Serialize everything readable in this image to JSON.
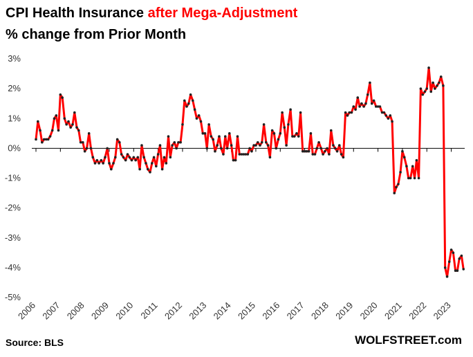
{
  "chart_data": {
    "type": "line",
    "title": "CPI Health Insurance",
    "title_highlight": "after Mega-Adjustment",
    "subtitle": "% change from Prior Month",
    "source": "Source: BLS",
    "brand": "WOLFSTREET.com",
    "x": [
      2006,
      2006.08,
      2006.17,
      2006.25,
      2006.33,
      2006.42,
      2006.5,
      2006.58,
      2006.67,
      2006.75,
      2006.83,
      2006.92,
      2007,
      2007.08,
      2007.17,
      2007.25,
      2007.33,
      2007.42,
      2007.5,
      2007.58,
      2007.67,
      2007.75,
      2007.83,
      2007.92,
      2008,
      2008.08,
      2008.17,
      2008.25,
      2008.33,
      2008.42,
      2008.5,
      2008.58,
      2008.67,
      2008.75,
      2008.83,
      2008.92,
      2009,
      2009.08,
      2009.17,
      2009.25,
      2009.33,
      2009.42,
      2009.5,
      2009.58,
      2009.67,
      2009.75,
      2009.83,
      2009.92,
      2010,
      2010.08,
      2010.17,
      2010.25,
      2010.33,
      2010.42,
      2010.5,
      2010.58,
      2010.67,
      2010.75,
      2010.83,
      2010.92,
      2011,
      2011.08,
      2011.17,
      2011.25,
      2011.33,
      2011.42,
      2011.5,
      2011.58,
      2011.67,
      2011.75,
      2011.83,
      2011.92,
      2012,
      2012.08,
      2012.17,
      2012.25,
      2012.33,
      2012.42,
      2012.5,
      2012.58,
      2012.67,
      2012.75,
      2012.83,
      2012.92,
      2013,
      2013.08,
      2013.17,
      2013.25,
      2013.33,
      2013.42,
      2013.5,
      2013.58,
      2013.67,
      2013.75,
      2013.83,
      2013.92,
      2014,
      2014.08,
      2014.17,
      2014.25,
      2014.33,
      2014.42,
      2014.5,
      2014.58,
      2014.67,
      2014.75,
      2014.83,
      2014.92,
      2015,
      2015.08,
      2015.17,
      2015.25,
      2015.33,
      2015.42,
      2015.5,
      2015.58,
      2015.67,
      2015.75,
      2015.83,
      2015.92,
      2016,
      2016.08,
      2016.17,
      2016.25,
      2016.33,
      2016.42,
      2016.5,
      2016.58,
      2016.67,
      2016.75,
      2016.83,
      2016.92,
      2017,
      2017.08,
      2017.17,
      2017.25,
      2017.33,
      2017.42,
      2017.5,
      2017.58,
      2017.67,
      2017.75,
      2017.83,
      2017.92,
      2018,
      2018.08,
      2018.17,
      2018.25,
      2018.33,
      2018.42,
      2018.5,
      2018.58,
      2018.67,
      2018.75,
      2018.83,
      2018.92,
      2019,
      2019.08,
      2019.17,
      2019.25,
      2019.33,
      2019.42,
      2019.5,
      2019.58,
      2019.67,
      2019.75,
      2019.83,
      2019.92,
      2020,
      2020.08,
      2020.17,
      2020.25,
      2020.33,
      2020.42,
      2020.5,
      2020.58,
      2020.67,
      2020.75,
      2020.83,
      2020.92,
      2021,
      2021.08,
      2021.17,
      2021.25,
      2021.33,
      2021.42,
      2021.5,
      2021.58,
      2021.67,
      2021.75,
      2021.83,
      2021.92,
      2022,
      2022.08,
      2022.17,
      2022.25,
      2022.33,
      2022.42,
      2022.5,
      2022.58,
      2022.67,
      2022.75,
      2022.83,
      2022.92,
      2023,
      2023.08,
      2023.17,
      2023.25,
      2023.33,
      2023.42,
      2023.5
    ],
    "series": [
      {
        "name": "CPI Health Insurance",
        "color": "#ff0000",
        "marker_color": "#222222",
        "values": [
          0.3,
          0.9,
          0.6,
          0.2,
          0.3,
          0.3,
          0.3,
          0.4,
          0.6,
          1.0,
          1.1,
          0.6,
          1.8,
          1.7,
          1.0,
          0.8,
          0.9,
          0.7,
          0.8,
          1.2,
          0.7,
          0.6,
          0.2,
          0.2,
          -0.1,
          0.0,
          0.5,
          0.0,
          -0.3,
          -0.5,
          -0.4,
          -0.5,
          -0.4,
          -0.5,
          -0.3,
          0.0,
          -0.5,
          -0.7,
          -0.5,
          -0.3,
          0.3,
          0.2,
          -0.2,
          -0.3,
          -0.4,
          -0.2,
          -0.3,
          -0.4,
          -0.3,
          -0.4,
          -0.3,
          -0.7,
          0.1,
          -0.3,
          -0.5,
          -0.7,
          -0.8,
          -0.5,
          -0.3,
          -0.6,
          -0.2,
          0.1,
          -0.7,
          -0.3,
          -0.5,
          0.4,
          -0.3,
          0.1,
          0.2,
          0.0,
          0.2,
          0.2,
          0.8,
          1.6,
          1.4,
          1.5,
          1.8,
          1.6,
          1.3,
          1.0,
          1.1,
          0.9,
          0.5,
          0.5,
          0.0,
          0.8,
          0.4,
          0.3,
          -0.1,
          0.1,
          0.4,
          0.0,
          -0.2,
          0.4,
          0.0,
          0.5,
          0.1,
          -0.4,
          -0.4,
          0.4,
          -0.2,
          -0.2,
          -0.2,
          -0.2,
          -0.2,
          0.0,
          -0.1,
          0.1,
          0.1,
          0.2,
          0.1,
          0.2,
          0.8,
          0.2,
          0.1,
          -0.3,
          0.6,
          0.5,
          0.0,
          0.3,
          0.5,
          1.2,
          0.7,
          0.1,
          0.8,
          1.3,
          0.4,
          0.4,
          0.5,
          0.4,
          1.2,
          -0.1,
          -0.1,
          -0.1,
          -0.1,
          0.5,
          -0.2,
          -0.2,
          0.0,
          0.2,
          0.0,
          -0.2,
          -0.1,
          0.0,
          -0.2,
          0.6,
          0.1,
          0.0,
          -0.1,
          0.1,
          -0.2,
          -0.3,
          1.2,
          1.1,
          1.2,
          1.2,
          1.4,
          1.3,
          1.7,
          1.4,
          1.5,
          1.4,
          1.5,
          1.8,
          2.2,
          1.5,
          1.6,
          1.4,
          1.4,
          1.4,
          1.2,
          1.2,
          1.1,
          1.0,
          1.1,
          0.9,
          -1.5,
          -1.3,
          -1.2,
          -0.8,
          -0.1,
          -0.3,
          -0.6,
          -1.0,
          -1.0,
          -0.6,
          -1.0,
          -0.4,
          -1.0,
          2.0,
          1.8,
          1.9,
          2.0,
          2.7,
          1.9,
          2.2,
          2.0,
          2.1,
          2.2,
          2.4,
          2.1,
          -4.0,
          -4.3,
          -3.8,
          -3.4,
          -3.5,
          -4.1,
          -4.1,
          -3.7,
          -3.6,
          -4.05
        ]
      }
    ],
    "xlim": [
      2006,
      2023.55
    ],
    "xticks": [
      2006,
      2007,
      2008,
      2009,
      2010,
      2011,
      2012,
      2013,
      2014,
      2015,
      2016,
      2017,
      2018,
      2019,
      2020,
      2021,
      2022,
      2023
    ],
    "ylim": [
      -5,
      3
    ],
    "yticks": [
      {
        "value": 3,
        "label": "3%"
      },
      {
        "value": 2,
        "label": "2%"
      },
      {
        "value": 1,
        "label": "1%"
      },
      {
        "value": 0,
        "label": "0%"
      },
      {
        "value": -1,
        "label": "-1%"
      },
      {
        "value": -2,
        "label": "-2%"
      },
      {
        "value": -3,
        "label": "-3%"
      },
      {
        "value": -4,
        "label": "-4%"
      },
      {
        "value": -5,
        "label": "-5%"
      }
    ],
    "grid": false
  }
}
